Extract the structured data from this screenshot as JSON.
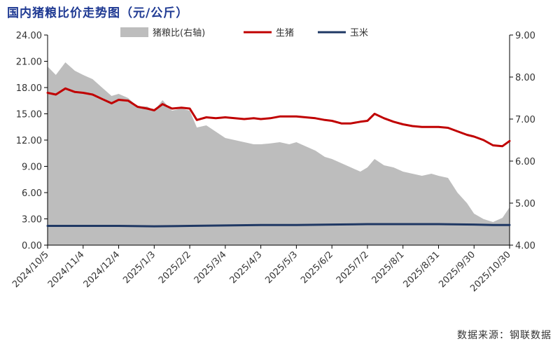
{
  "chart_data": {
    "type": "line",
    "title": "国内猪粮比价走势图（元/公斤）",
    "source": "数据来源：钢联数据",
    "x_ticks": [
      "2024/10/5",
      "2024/11/4",
      "2024/12/4",
      "2025/1/3",
      "2025/2/2",
      "2025/3/4",
      "2025/4/3",
      "2025/5/3",
      "2025/6/2",
      "2025/7/2",
      "2025/8/1",
      "2025/8/31",
      "2025/9/30",
      "2025/10/30"
    ],
    "x_range": [
      "2024/10/5",
      "2025/10/30"
    ],
    "y_left": {
      "min": 0,
      "max": 24,
      "step": 3,
      "ticks": [
        "0.00",
        "3.00",
        "6.00",
        "9.00",
        "12.00",
        "15.00",
        "18.00",
        "21.00",
        "24.00"
      ]
    },
    "y_right": {
      "min": 4,
      "max": 9,
      "step": 0.5,
      "ticks": [
        "4.00",
        "5.00",
        "6.00",
        "7.00",
        "8.00",
        "9.00"
      ]
    },
    "legend": {
      "placement": "top",
      "items": [
        {
          "name": "猪粮比(右轴)",
          "color": "#bdbdbd",
          "kind": "area"
        },
        {
          "name": "生猪",
          "color": "#c00000",
          "kind": "line"
        },
        {
          "name": "玉米",
          "color": "#1f3864",
          "kind": "line"
        }
      ]
    },
    "series": [
      {
        "name": "猪粮比(右轴)",
        "axis": "right",
        "type": "area",
        "color": "#bdbdbd",
        "points": [
          [
            "2024/10/5",
            8.25
          ],
          [
            "2024/10/12",
            8.05
          ],
          [
            "2024/10/20",
            8.35
          ],
          [
            "2024/10/28",
            8.15
          ],
          [
            "2024/11/4",
            8.05
          ],
          [
            "2024/11/12",
            7.95
          ],
          [
            "2024/11/20",
            7.75
          ],
          [
            "2024/11/28",
            7.55
          ],
          [
            "2024/12/4",
            7.6
          ],
          [
            "2024/12/12",
            7.5
          ],
          [
            "2024/12/20",
            7.3
          ],
          [
            "2024/12/28",
            7.3
          ],
          [
            "2025/1/3",
            7.2
          ],
          [
            "2025/1/10",
            7.45
          ],
          [
            "2025/1/18",
            7.2
          ],
          [
            "2025/1/26",
            7.25
          ],
          [
            "2025/2/2",
            7.2
          ],
          [
            "2025/2/8",
            6.8
          ],
          [
            "2025/2/16",
            6.85
          ],
          [
            "2025/2/24",
            6.7
          ],
          [
            "2025/3/4",
            6.55
          ],
          [
            "2025/3/12",
            6.5
          ],
          [
            "2025/3/20",
            6.45
          ],
          [
            "2025/3/28",
            6.4
          ],
          [
            "2025/4/3",
            6.4
          ],
          [
            "2025/4/11",
            6.42
          ],
          [
            "2025/4/19",
            6.45
          ],
          [
            "2025/4/27",
            6.4
          ],
          [
            "2025/5/3",
            6.45
          ],
          [
            "2025/5/11",
            6.35
          ],
          [
            "2025/5/19",
            6.25
          ],
          [
            "2025/5/27",
            6.1
          ],
          [
            "2025/6/2",
            6.05
          ],
          [
            "2025/6/10",
            5.95
          ],
          [
            "2025/6/18",
            5.85
          ],
          [
            "2025/6/26",
            5.75
          ],
          [
            "2025/7/2",
            5.85
          ],
          [
            "2025/7/8",
            6.05
          ],
          [
            "2025/7/16",
            5.9
          ],
          [
            "2025/7/24",
            5.85
          ],
          [
            "2025/8/1",
            5.75
          ],
          [
            "2025/8/9",
            5.7
          ],
          [
            "2025/8/17",
            5.65
          ],
          [
            "2025/8/25",
            5.7
          ],
          [
            "2025/8/31",
            5.65
          ],
          [
            "2025/9/8",
            5.6
          ],
          [
            "2025/9/16",
            5.25
          ],
          [
            "2025/9/24",
            5.0
          ],
          [
            "2025/9/30",
            4.75
          ],
          [
            "2025/10/8",
            4.62
          ],
          [
            "2025/10/16",
            4.55
          ],
          [
            "2025/10/24",
            4.65
          ],
          [
            "2025/10/30",
            4.9
          ]
        ]
      },
      {
        "name": "生猪",
        "axis": "left",
        "type": "line",
        "color": "#c00000",
        "points": [
          [
            "2024/10/5",
            17.4
          ],
          [
            "2024/10/12",
            17.2
          ],
          [
            "2024/10/20",
            17.9
          ],
          [
            "2024/10/28",
            17.5
          ],
          [
            "2024/11/4",
            17.4
          ],
          [
            "2024/11/12",
            17.2
          ],
          [
            "2024/11/20",
            16.7
          ],
          [
            "2024/11/28",
            16.2
          ],
          [
            "2024/12/4",
            16.6
          ],
          [
            "2024/12/12",
            16.5
          ],
          [
            "2024/12/20",
            15.8
          ],
          [
            "2024/12/28",
            15.6
          ],
          [
            "2025/1/3",
            15.4
          ],
          [
            "2025/1/10",
            16.1
          ],
          [
            "2025/1/18",
            15.6
          ],
          [
            "2025/1/26",
            15.7
          ],
          [
            "2025/2/2",
            15.6
          ],
          [
            "2025/2/8",
            14.3
          ],
          [
            "2025/2/16",
            14.6
          ],
          [
            "2025/2/24",
            14.5
          ],
          [
            "2025/3/4",
            14.6
          ],
          [
            "2025/3/12",
            14.5
          ],
          [
            "2025/3/20",
            14.4
          ],
          [
            "2025/3/28",
            14.5
          ],
          [
            "2025/4/3",
            14.4
          ],
          [
            "2025/4/11",
            14.5
          ],
          [
            "2025/4/19",
            14.7
          ],
          [
            "2025/4/27",
            14.7
          ],
          [
            "2025/5/3",
            14.7
          ],
          [
            "2025/5/11",
            14.6
          ],
          [
            "2025/5/19",
            14.5
          ],
          [
            "2025/5/27",
            14.3
          ],
          [
            "2025/6/2",
            14.2
          ],
          [
            "2025/6/10",
            13.9
          ],
          [
            "2025/6/18",
            13.9
          ],
          [
            "2025/6/26",
            14.1
          ],
          [
            "2025/7/2",
            14.2
          ],
          [
            "2025/7/8",
            15.0
          ],
          [
            "2025/7/16",
            14.5
          ],
          [
            "2025/7/24",
            14.1
          ],
          [
            "2025/8/1",
            13.8
          ],
          [
            "2025/8/9",
            13.6
          ],
          [
            "2025/8/17",
            13.5
          ],
          [
            "2025/8/25",
            13.5
          ],
          [
            "2025/8/31",
            13.5
          ],
          [
            "2025/9/8",
            13.4
          ],
          [
            "2025/9/16",
            13.0
          ],
          [
            "2025/9/24",
            12.6
          ],
          [
            "2025/9/30",
            12.4
          ],
          [
            "2025/10/8",
            12.0
          ],
          [
            "2025/10/16",
            11.4
          ],
          [
            "2025/10/24",
            11.3
          ],
          [
            "2025/10/30",
            11.9
          ]
        ]
      },
      {
        "name": "玉米",
        "axis": "left",
        "type": "line",
        "color": "#1f3864",
        "points": [
          [
            "2024/10/5",
            2.2
          ],
          [
            "2024/11/4",
            2.2
          ],
          [
            "2024/12/4",
            2.2
          ],
          [
            "2025/1/3",
            2.15
          ],
          [
            "2025/2/2",
            2.2
          ],
          [
            "2025/3/4",
            2.25
          ],
          [
            "2025/4/3",
            2.3
          ],
          [
            "2025/5/3",
            2.3
          ],
          [
            "2025/6/2",
            2.35
          ],
          [
            "2025/7/2",
            2.4
          ],
          [
            "2025/8/1",
            2.4
          ],
          [
            "2025/8/31",
            2.4
          ],
          [
            "2025/9/30",
            2.35
          ],
          [
            "2025/10/16",
            2.3
          ],
          [
            "2025/10/30",
            2.3
          ]
        ]
      }
    ]
  }
}
